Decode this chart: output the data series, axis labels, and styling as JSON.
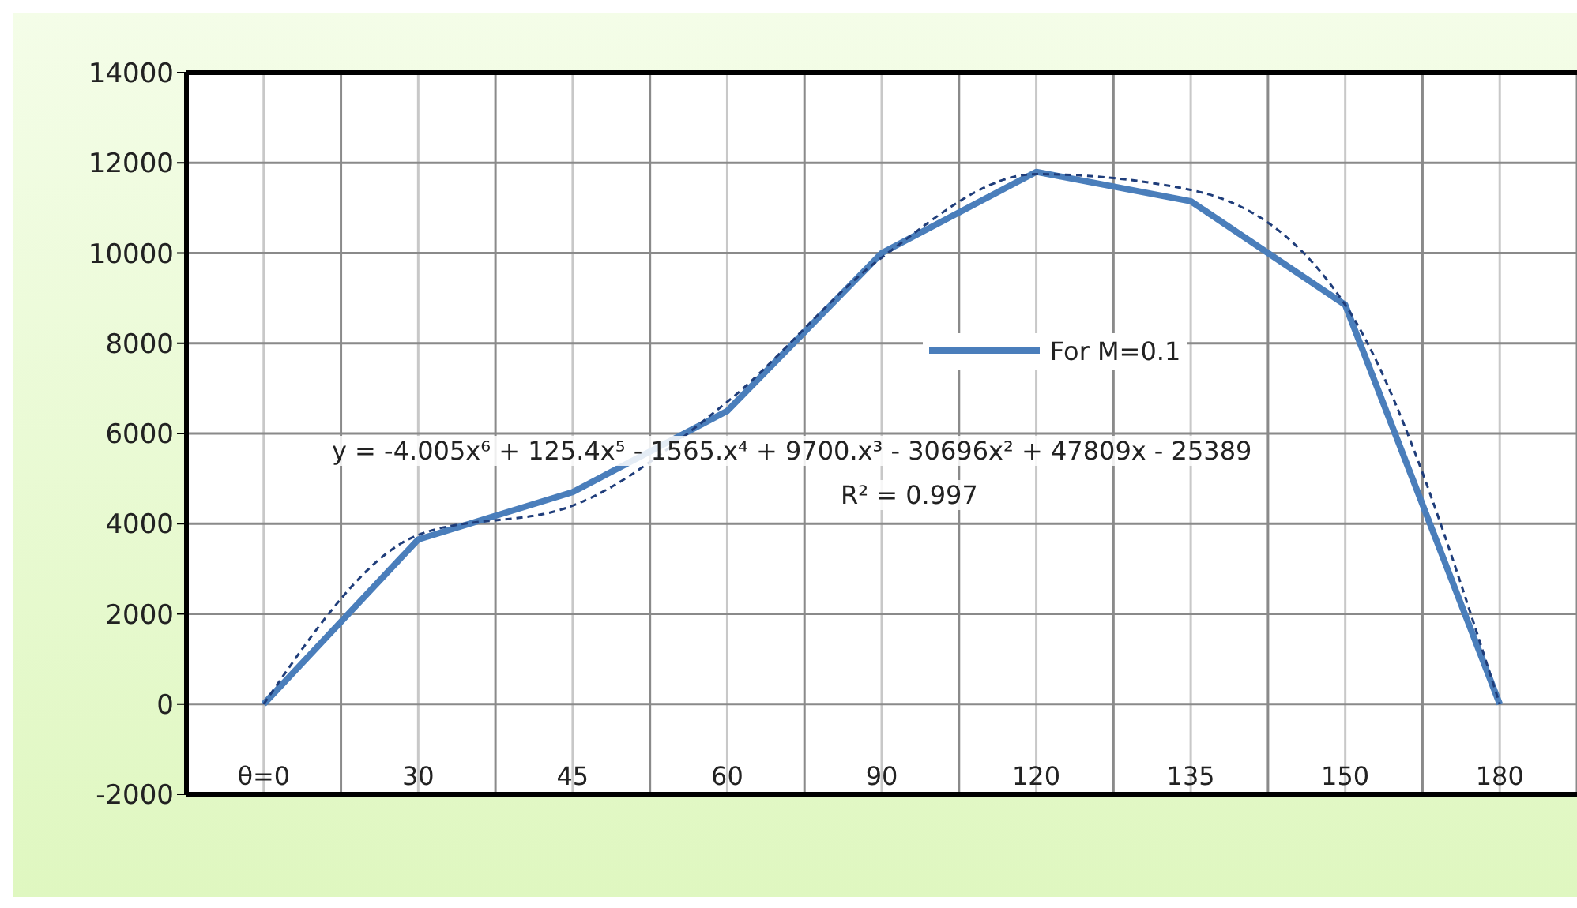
{
  "chart_data": {
    "type": "line",
    "categories": [
      "θ=0",
      "30",
      "45",
      "60",
      "90",
      "120",
      "135",
      "150",
      "180"
    ],
    "ylim": [
      -2000,
      14000
    ],
    "yticks": [
      -2000,
      0,
      2000,
      4000,
      6000,
      8000,
      10000,
      12000,
      14000
    ],
    "grid": true,
    "legend": "right",
    "marker": "none",
    "series": [
      {
        "name": "For M=0.1",
        "color": "#4a7ebb",
        "values": [
          0,
          3650,
          4700,
          6500,
          10000,
          11800,
          11150,
          8850,
          0
        ]
      },
      {
        "type": "line",
        "line_style": "dashed",
        "color": "#1f3d7a",
        "values": [
          0,
          3750,
          4400,
          6700,
          9900,
          11750,
          11400,
          8850,
          0
        ]
      }
    ],
    "annotations": [
      "y = -4.005x⁶ + 125.4x⁵ - 1565.x⁴ + 9700.x³ - 30696x² + 47809x - 25389",
      "R² = 0.997"
    ]
  }
}
